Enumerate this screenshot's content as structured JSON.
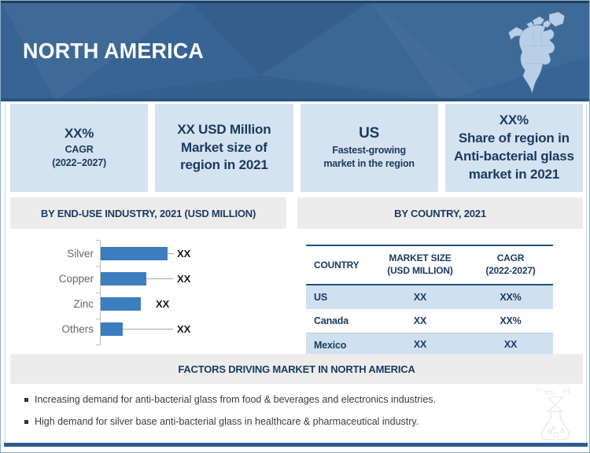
{
  "header": {
    "title": "NORTH AMERICA",
    "map_icon": "north-america-map-icon",
    "banner_color": "#376493"
  },
  "stat_boxes": [
    {
      "big": "XX%",
      "small1": "CAGR",
      "small2": "(2022–2027)"
    },
    {
      "lines": [
        "XX USD Million",
        "Market size of",
        "region in 2021"
      ]
    },
    {
      "big": "US",
      "small1": "Fastest-growing",
      "small2": "market in the region"
    },
    {
      "lines": [
        "XX%",
        "Share of region in",
        "Anti-bacterial glass",
        "market in 2021"
      ]
    }
  ],
  "sections": {
    "left_header": "BY END-USE INDUSTRY, 2021 (USD MILLION)",
    "right_header": "BY COUNTRY, 2021"
  },
  "chart_data": {
    "type": "bar",
    "orientation": "horizontal",
    "title": "BY END-USE INDUSTRY, 2021 (USD MILLION)",
    "categories": [
      "Silver",
      "Copper",
      "Zinc",
      "Others"
    ],
    "values": [
      "XX",
      "XX",
      "XX",
      "XX"
    ],
    "relative_bar_lengths_pct": [
      100,
      68,
      60,
      33
    ],
    "bar_color": "#3b7dbf",
    "xlabel": "",
    "ylabel": "",
    "grid": false,
    "legend": false
  },
  "country_table": {
    "header": {
      "country": "COUNTRY",
      "size_line1": "MARKET SIZE",
      "size_line2": "(USD MILLION)",
      "cagr_line1": "CAGR",
      "cagr_line2": "(2022-2027)"
    },
    "rows": [
      {
        "country": "US",
        "market_size": "XX",
        "cagr": "XX%"
      },
      {
        "country": "Canada",
        "market_size": "XX",
        "cagr": "XX%"
      },
      {
        "country": "Mexico",
        "market_size": "XX",
        "cagr": "XX"
      }
    ],
    "row_highlight_color": "#cfe1f1",
    "rule_color": "#21517e"
  },
  "factors": {
    "header": "FACTORS DRIVING MARKET IN NORTH AMERICA",
    "bullets": [
      "Increasing demand for anti-bacterial glass from food & beverages and electronics industries.",
      "High demand for silver base anti-bacterial glass in healthcare & pharmaceutical industry."
    ]
  },
  "watermark_icon": "flask-watermark-icon",
  "colors": {
    "stat_box_bg": "#d5e2f0",
    "navy_text": "#1b3a5f",
    "section_header_bg": "#ececec",
    "bottom_bar": "#2a5d8e"
  }
}
